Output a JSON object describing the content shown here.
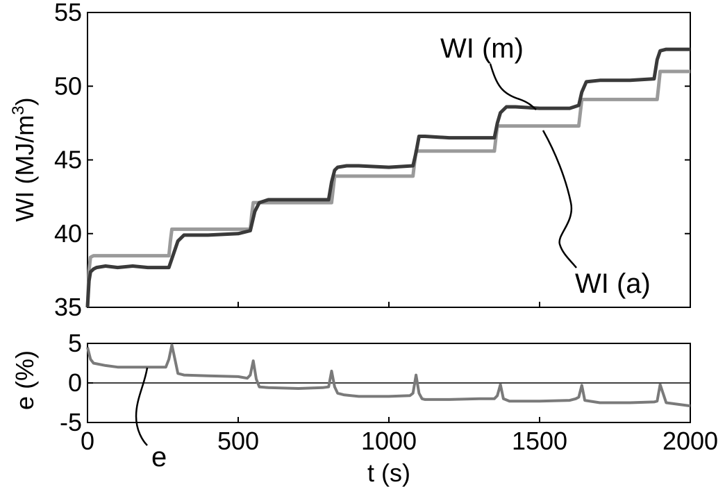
{
  "chart_data": [
    {
      "type": "line",
      "ylabel_main": "WI (MJ/m",
      "ylabel_sup": "3",
      "ylabel_end": ")",
      "xlabel": "",
      "xlim": [
        0,
        2000
      ],
      "ylim": [
        35,
        55
      ],
      "yticks": [
        "35",
        "40",
        "45",
        "50",
        "55"
      ],
      "grid": false,
      "colors": {
        "measured": "#3a3a3a",
        "actual": "#9a9a9a",
        "axis": "#000000"
      },
      "series": [
        {
          "name": "WI (m)",
          "color": "#3a3a3a",
          "x": [
            0,
            5,
            10,
            20,
            30,
            60,
            100,
            150,
            200,
            270,
            280,
            300,
            320,
            400,
            500,
            540,
            555,
            570,
            600,
            700,
            800,
            810,
            820,
            830,
            860,
            900,
            1000,
            1080,
            1090,
            1100,
            1120,
            1200,
            1350,
            1360,
            1370,
            1390,
            1420,
            1500,
            1600,
            1630,
            1640,
            1655,
            1700,
            1800,
            1880,
            1890,
            1900,
            1920,
            2000
          ],
          "y": [
            35.0,
            36.8,
            37.4,
            37.6,
            37.7,
            37.8,
            37.7,
            37.8,
            37.7,
            37.7,
            38.3,
            39.5,
            39.9,
            39.9,
            40.0,
            40.2,
            41.5,
            42.1,
            42.3,
            42.3,
            42.3,
            43.5,
            44.3,
            44.5,
            44.6,
            44.6,
            44.5,
            44.6,
            45.5,
            46.6,
            46.6,
            46.5,
            46.5,
            47.5,
            48.2,
            48.6,
            48.6,
            48.5,
            48.5,
            48.7,
            49.6,
            50.3,
            50.4,
            50.4,
            50.5,
            51.8,
            52.4,
            52.5,
            52.5
          ]
        },
        {
          "name": "WI (a)",
          "color": "#9a9a9a",
          "x": [
            0,
            5,
            10,
            20,
            270,
            275,
            280,
            540,
            545,
            550,
            810,
            815,
            820,
            1080,
            1085,
            1090,
            1350,
            1355,
            1360,
            1630,
            1635,
            1640,
            1890,
            1895,
            1900,
            2000
          ],
          "y": [
            35.0,
            37.5,
            38.4,
            38.5,
            38.5,
            39.5,
            40.3,
            40.3,
            41.3,
            42.1,
            42.1,
            43.0,
            43.9,
            43.9,
            44.8,
            45.6,
            45.6,
            46.5,
            47.3,
            47.3,
            48.2,
            49.1,
            49.1,
            50.0,
            51.0,
            51.0
          ]
        }
      ],
      "annotations": [
        "WI (m)",
        "WI (a)"
      ]
    },
    {
      "type": "line",
      "ylabel": "e (%)",
      "xlabel": "t (s)",
      "xlim": [
        0,
        2000
      ],
      "ylim": [
        -5,
        5
      ],
      "xticks": [
        "0",
        "500",
        "1000",
        "1500",
        "2000"
      ],
      "yticks": [
        "-5",
        "0",
        "5"
      ],
      "reference_line_y": 0,
      "grid": false,
      "series": [
        {
          "name": "e",
          "color": "#7a7a7a",
          "x": [
            0,
            10,
            20,
            60,
            100,
            150,
            200,
            260,
            270,
            280,
            290,
            300,
            320,
            400,
            500,
            530,
            540,
            550,
            560,
            570,
            600,
            700,
            780,
            800,
            810,
            820,
            830,
            850,
            900,
            1000,
            1070,
            1080,
            1090,
            1100,
            1110,
            1120,
            1200,
            1300,
            1350,
            1360,
            1370,
            1380,
            1400,
            1500,
            1600,
            1620,
            1630,
            1640,
            1650,
            1700,
            1800,
            1880,
            1890,
            1900,
            1920,
            2000
          ],
          "y": [
            4.5,
            3.0,
            2.5,
            2.2,
            2.0,
            2.0,
            2.0,
            2.0,
            3.0,
            4.8,
            3.0,
            1.2,
            1.0,
            0.9,
            0.8,
            0.6,
            1.0,
            2.8,
            0.5,
            -0.5,
            -0.6,
            -0.7,
            -0.6,
            -0.5,
            1.5,
            -0.5,
            -1.3,
            -1.5,
            -1.7,
            -1.7,
            -1.6,
            -1.3,
            1.0,
            -1.3,
            -2.0,
            -2.1,
            -2.1,
            -2.0,
            -2.0,
            -1.6,
            -0.2,
            -2.0,
            -2.3,
            -2.3,
            -2.2,
            -2.0,
            -1.8,
            -0.3,
            -2.2,
            -2.5,
            -2.5,
            -2.4,
            -2.3,
            -0.2,
            -2.5,
            -2.9
          ]
        }
      ],
      "annotations": [
        "e"
      ]
    }
  ]
}
